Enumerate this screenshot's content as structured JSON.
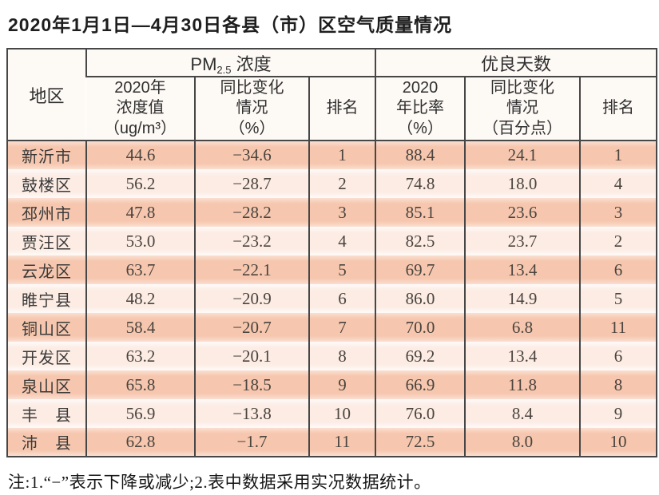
{
  "page": {
    "title": "2020年1月1日—4月30日各县（市）区空气质量情况",
    "note": "注:1.“−”表示下降或减少;2.表中数据采用实况数据统计。"
  },
  "colors": {
    "table_border": "#474747",
    "row_salmon": "#f6c7ae",
    "row_salmon_edge": "#fadfd2",
    "row_light": "#fcece4",
    "row_light_edge": "#fefaf8",
    "header_bg": "#fdf9f5",
    "region_header_bg": "#fae9dc",
    "number_text": "#4a443f"
  },
  "table": {
    "region_header": "地区",
    "pm_group": {
      "prefix": "PM",
      "sub": "2.5",
      "suffix": " 浓度"
    },
    "good_days_group": "优良天数",
    "sub_headers": {
      "pm_value": "2020年\n浓度值\n（ug/m³）",
      "pm_change": "同比变化\n情况\n（%）",
      "pm_rank": "排名",
      "good_ratio": "2020\n年比率\n（%）",
      "good_change": "同比变化\n情况\n（百分点）",
      "good_rank": "排名"
    },
    "rows": [
      {
        "region": "新沂市",
        "pm_value": "44.6",
        "pm_change": "−34.6",
        "pm_rank": "1",
        "good_ratio": "88.4",
        "good_change": "24.1",
        "good_rank": "1"
      },
      {
        "region": "鼓楼区",
        "pm_value": "56.2",
        "pm_change": "−28.7",
        "pm_rank": "2",
        "good_ratio": "74.8",
        "good_change": "18.0",
        "good_rank": "4"
      },
      {
        "region": "邳州市",
        "pm_value": "47.8",
        "pm_change": "−28.2",
        "pm_rank": "3",
        "good_ratio": "85.1",
        "good_change": "23.6",
        "good_rank": "3"
      },
      {
        "region": "贾汪区",
        "pm_value": "53.0",
        "pm_change": "−23.2",
        "pm_rank": "4",
        "good_ratio": "82.5",
        "good_change": "23.7",
        "good_rank": "2"
      },
      {
        "region": "云龙区",
        "pm_value": "63.7",
        "pm_change": "−22.1",
        "pm_rank": "5",
        "good_ratio": "69.7",
        "good_change": "13.4",
        "good_rank": "6"
      },
      {
        "region": "睢宁县",
        "pm_value": "48.2",
        "pm_change": "−20.9",
        "pm_rank": "6",
        "good_ratio": "86.0",
        "good_change": "14.9",
        "good_rank": "5"
      },
      {
        "region": "铜山区",
        "pm_value": "58.4",
        "pm_change": "−20.7",
        "pm_rank": "7",
        "good_ratio": "70.0",
        "good_change": "6.8",
        "good_rank": "11"
      },
      {
        "region": "开发区",
        "pm_value": "63.2",
        "pm_change": "−20.1",
        "pm_rank": "8",
        "good_ratio": "69.2",
        "good_change": "13.4",
        "good_rank": "6"
      },
      {
        "region": "泉山区",
        "pm_value": "65.8",
        "pm_change": "−18.5",
        "pm_rank": "9",
        "good_ratio": "66.9",
        "good_change": "11.8",
        "good_rank": "8"
      },
      {
        "region": "丰　县",
        "pm_value": "56.9",
        "pm_change": "−13.8",
        "pm_rank": "10",
        "good_ratio": "76.0",
        "good_change": "8.4",
        "good_rank": "9"
      },
      {
        "region": "沛　县",
        "pm_value": "62.8",
        "pm_change": "−1.7",
        "pm_rank": "11",
        "good_ratio": "72.5",
        "good_change": "8.0",
        "good_rank": "10"
      }
    ]
  },
  "chart_data": {
    "type": "table",
    "title": "2020年1月1日—4月30日各县（市）区空气质量情况",
    "columns": [
      "地区",
      "PM2.5浓度 2020年浓度值（ug/m³）",
      "PM2.5浓度 同比变化情况（%）",
      "PM2.5浓度 排名",
      "优良天数 2020年比率（%）",
      "优良天数 同比变化情况（百分点）",
      "优良天数 排名"
    ],
    "rows": [
      [
        "新沂市",
        44.6,
        -34.6,
        1,
        88.4,
        24.1,
        1
      ],
      [
        "鼓楼区",
        56.2,
        -28.7,
        2,
        74.8,
        18.0,
        4
      ],
      [
        "邳州市",
        47.8,
        -28.2,
        3,
        85.1,
        23.6,
        3
      ],
      [
        "贾汪区",
        53.0,
        -23.2,
        4,
        82.5,
        23.7,
        2
      ],
      [
        "云龙区",
        63.7,
        -22.1,
        5,
        69.7,
        13.4,
        6
      ],
      [
        "睢宁县",
        48.2,
        -20.9,
        6,
        86.0,
        14.9,
        5
      ],
      [
        "铜山区",
        58.4,
        -20.7,
        7,
        70.0,
        6.8,
        11
      ],
      [
        "开发区",
        63.2,
        -20.1,
        8,
        69.2,
        13.4,
        6
      ],
      [
        "泉山区",
        65.8,
        -18.5,
        9,
        66.9,
        11.8,
        8
      ],
      [
        "丰县",
        56.9,
        -13.8,
        10,
        76.0,
        8.4,
        9
      ],
      [
        "沛县",
        62.8,
        -1.7,
        11,
        72.5,
        8.0,
        10
      ]
    ]
  }
}
